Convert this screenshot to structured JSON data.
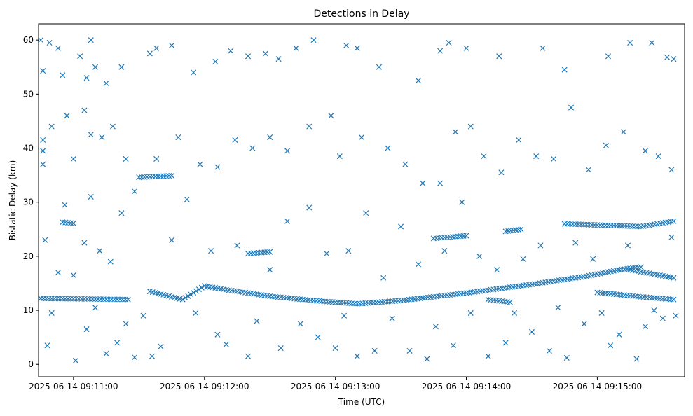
{
  "chart_data": {
    "type": "scatter",
    "title": "Detections in Delay",
    "xlabel": "Time (UTC)",
    "ylabel": "Bistatic Delay (km)",
    "marker": "x",
    "color": "#1f77b4",
    "grid": false,
    "legend": false,
    "x_unit": "UTC time (HH:MM:SS)",
    "xlim": [
      "09:10:44",
      "09:15:40"
    ],
    "ylim": [
      -2.3,
      63
    ],
    "x_ticks": [
      "2025-06-14 09:11:00",
      "2025-06-14 09:12:00",
      "2025-06-14 09:13:00",
      "2025-06-14 09:14:00",
      "2025-06-14 09:15:00"
    ],
    "y_ticks": [
      "0",
      "10",
      "20",
      "30",
      "40",
      "50",
      "60"
    ],
    "tracks": [
      {
        "description": "main falling-then-rising track",
        "points": [
          [
            "09:11:35",
            13.5
          ],
          [
            "09:11:50",
            12.0
          ],
          [
            "09:12:00",
            14.5
          ],
          [
            "09:12:10",
            13.8
          ],
          [
            "09:12:30",
            12.6
          ],
          [
            "09:12:50",
            11.8
          ],
          [
            "09:13:10",
            11.2
          ],
          [
            "09:13:30",
            11.8
          ],
          [
            "09:14:00",
            13.2
          ],
          [
            "09:14:30",
            14.8
          ],
          [
            "09:14:55",
            16.3
          ],
          [
            "09:15:10",
            17.5
          ],
          [
            "09:15:20",
            18.0
          ]
        ]
      },
      {
        "description": "lower continuation track",
        "points": [
          [
            "09:15:00",
            13.3
          ],
          [
            "09:15:20",
            12.5
          ],
          [
            "09:15:35",
            12.0
          ]
        ]
      },
      {
        "description": "upper branch track",
        "points": [
          [
            "09:15:15",
            17.5
          ],
          [
            "09:15:35",
            16.0
          ]
        ]
      },
      {
        "description": "track near 26 km",
        "points": [
          [
            "09:14:45",
            26.0
          ],
          [
            "09:15:20",
            25.5
          ],
          [
            "09:15:35",
            26.5
          ]
        ]
      },
      {
        "description": "segment near 34.5 km",
        "points": [
          [
            "09:11:30",
            34.6
          ],
          [
            "09:11:45",
            34.9
          ]
        ]
      },
      {
        "description": "segment near 23.5 km",
        "points": [
          [
            "09:13:45",
            23.3
          ],
          [
            "09:14:00",
            23.8
          ]
        ]
      },
      {
        "description": "segment near 20.5 km",
        "points": [
          [
            "09:12:20",
            20.5
          ],
          [
            "09:12:30",
            20.8
          ]
        ]
      },
      {
        "description": "segment near 26 km (early)",
        "points": [
          [
            "09:10:55",
            26.3
          ],
          [
            "09:11:00",
            26.1
          ]
        ]
      },
      {
        "description": "segment near 12 km (early)",
        "points": [
          [
            "09:10:45",
            12.2
          ],
          [
            "09:11:25",
            12.0
          ]
        ]
      },
      {
        "description": "segment near 25 km",
        "points": [
          [
            "09:14:18",
            24.6
          ],
          [
            "09:14:25",
            25.0
          ]
        ]
      },
      {
        "description": "segment near 12 km (mid)",
        "points": [
          [
            "09:14:10",
            12.0
          ],
          [
            "09:14:20",
            11.5
          ]
        ]
      }
    ],
    "scattered_points": [
      [
        "09:10:45",
        60.0
      ],
      [
        "09:10:46",
        54.3
      ],
      [
        "09:10:49",
        59.5
      ],
      [
        "09:10:53",
        58.5
      ],
      [
        "09:10:55",
        53.5
      ],
      [
        "09:11:03",
        57.0
      ],
      [
        "09:11:06",
        53.0
      ],
      [
        "09:11:08",
        60.0
      ],
      [
        "09:11:10",
        55.0
      ],
      [
        "09:11:15",
        52.0
      ],
      [
        "09:11:22",
        55.0
      ],
      [
        "09:11:35",
        57.5
      ],
      [
        "09:11:38",
        58.5
      ],
      [
        "09:11:45",
        59.0
      ],
      [
        "09:11:55",
        54.0
      ],
      [
        "09:12:05",
        56.0
      ],
      [
        "09:12:12",
        58.0
      ],
      [
        "09:12:20",
        57.0
      ],
      [
        "09:12:28",
        57.5
      ],
      [
        "09:12:34",
        56.5
      ],
      [
        "09:12:42",
        58.5
      ],
      [
        "09:12:50",
        60.0
      ],
      [
        "09:13:05",
        59.0
      ],
      [
        "09:13:10",
        58.5
      ],
      [
        "09:13:20",
        55.0
      ],
      [
        "09:13:38",
        52.5
      ],
      [
        "09:13:48",
        58.0
      ],
      [
        "09:13:52",
        59.5
      ],
      [
        "09:14:00",
        58.5
      ],
      [
        "09:14:15",
        57.0
      ],
      [
        "09:14:35",
        58.5
      ],
      [
        "09:14:45",
        54.5
      ],
      [
        "09:15:05",
        57.0
      ],
      [
        "09:15:15",
        59.5
      ],
      [
        "09:15:25",
        59.5
      ],
      [
        "09:15:32",
        56.8
      ],
      [
        "09:15:35",
        56.5
      ],
      [
        "09:10:46",
        41.5
      ],
      [
        "09:10:46",
        39.5
      ],
      [
        "09:10:46",
        37.0
      ],
      [
        "09:10:50",
        44.0
      ],
      [
        "09:10:57",
        46.0
      ],
      [
        "09:11:00",
        38.0
      ],
      [
        "09:11:05",
        47.0
      ],
      [
        "09:11:08",
        42.5
      ],
      [
        "09:11:13",
        42.0
      ],
      [
        "09:11:18",
        44.0
      ],
      [
        "09:11:24",
        38.0
      ],
      [
        "09:11:28",
        32.0
      ],
      [
        "09:11:38",
        38.0
      ],
      [
        "09:11:48",
        42.0
      ],
      [
        "09:11:58",
        37.0
      ],
      [
        "09:12:06",
        36.5
      ],
      [
        "09:12:14",
        41.5
      ],
      [
        "09:12:22",
        40.0
      ],
      [
        "09:12:30",
        42.0
      ],
      [
        "09:12:38",
        39.5
      ],
      [
        "09:12:48",
        44.0
      ],
      [
        "09:12:58",
        46.0
      ],
      [
        "09:13:02",
        38.5
      ],
      [
        "09:13:12",
        42.0
      ],
      [
        "09:13:24",
        40.0
      ],
      [
        "09:13:32",
        37.0
      ],
      [
        "09:13:40",
        33.5
      ],
      [
        "09:13:48",
        33.5
      ],
      [
        "09:13:55",
        43.0
      ],
      [
        "09:14:02",
        44.0
      ],
      [
        "09:14:08",
        38.5
      ],
      [
        "09:14:16",
        35.5
      ],
      [
        "09:14:24",
        41.5
      ],
      [
        "09:14:32",
        38.5
      ],
      [
        "09:14:40",
        38.0
      ],
      [
        "09:14:48",
        47.5
      ],
      [
        "09:14:56",
        36.0
      ],
      [
        "09:15:04",
        40.5
      ],
      [
        "09:15:12",
        43.0
      ],
      [
        "09:15:22",
        39.5
      ],
      [
        "09:15:28",
        38.5
      ],
      [
        "09:15:34",
        36.0
      ],
      [
        "09:10:47",
        23.0
      ],
      [
        "09:10:48",
        3.5
      ],
      [
        "09:10:50",
        9.5
      ],
      [
        "09:10:53",
        17.0
      ],
      [
        "09:10:56",
        29.5
      ],
      [
        "09:11:00",
        16.5
      ],
      [
        "09:11:01",
        0.7
      ],
      [
        "09:11:05",
        22.5
      ],
      [
        "09:11:06",
        6.5
      ],
      [
        "09:11:08",
        31.0
      ],
      [
        "09:11:10",
        10.5
      ],
      [
        "09:11:12",
        21.0
      ],
      [
        "09:11:15",
        2.0
      ],
      [
        "09:11:17",
        19.0
      ],
      [
        "09:11:20",
        4.0
      ],
      [
        "09:11:22",
        28.0
      ],
      [
        "09:11:24",
        7.5
      ],
      [
        "09:11:28",
        1.3
      ],
      [
        "09:11:32",
        9.0
      ],
      [
        "09:11:36",
        1.5
      ],
      [
        "09:11:40",
        3.3
      ],
      [
        "09:11:45",
        23.0
      ],
      [
        "09:11:52",
        30.5
      ],
      [
        "09:11:56",
        9.5
      ],
      [
        "09:12:03",
        21.0
      ],
      [
        "09:12:06",
        5.5
      ],
      [
        "09:12:10",
        3.7
      ],
      [
        "09:12:15",
        22.0
      ],
      [
        "09:12:20",
        1.5
      ],
      [
        "09:12:24",
        8.0
      ],
      [
        "09:12:30",
        17.5
      ],
      [
        "09:12:35",
        3.0
      ],
      [
        "09:12:38",
        26.5
      ],
      [
        "09:12:44",
        7.5
      ],
      [
        "09:12:48",
        29.0
      ],
      [
        "09:12:52",
        5.0
      ],
      [
        "09:12:56",
        20.5
      ],
      [
        "09:13:00",
        3.0
      ],
      [
        "09:13:04",
        9.0
      ],
      [
        "09:13:06",
        21.0
      ],
      [
        "09:13:10",
        1.5
      ],
      [
        "09:13:14",
        28.0
      ],
      [
        "09:13:18",
        2.5
      ],
      [
        "09:13:22",
        16.0
      ],
      [
        "09:13:26",
        8.5
      ],
      [
        "09:13:30",
        25.5
      ],
      [
        "09:13:34",
        2.5
      ],
      [
        "09:13:38",
        18.5
      ],
      [
        "09:13:42",
        1.0
      ],
      [
        "09:13:46",
        7.0
      ],
      [
        "09:13:50",
        21.0
      ],
      [
        "09:13:54",
        3.5
      ],
      [
        "09:13:58",
        30.0
      ],
      [
        "09:14:02",
        9.5
      ],
      [
        "09:14:06",
        20.0
      ],
      [
        "09:14:10",
        1.5
      ],
      [
        "09:14:14",
        17.5
      ],
      [
        "09:14:18",
        4.0
      ],
      [
        "09:14:22",
        9.5
      ],
      [
        "09:14:26",
        19.5
      ],
      [
        "09:14:30",
        6.0
      ],
      [
        "09:14:34",
        22.0
      ],
      [
        "09:14:38",
        2.5
      ],
      [
        "09:14:42",
        10.5
      ],
      [
        "09:14:46",
        1.2
      ],
      [
        "09:14:50",
        22.5
      ],
      [
        "09:14:54",
        7.5
      ],
      [
        "09:14:58",
        19.5
      ],
      [
        "09:15:02",
        9.5
      ],
      [
        "09:15:06",
        3.5
      ],
      [
        "09:15:10",
        5.5
      ],
      [
        "09:15:14",
        22.0
      ],
      [
        "09:15:18",
        1.0
      ],
      [
        "09:15:22",
        7.0
      ],
      [
        "09:15:26",
        10.0
      ],
      [
        "09:15:30",
        8.5
      ],
      [
        "09:15:34",
        23.5
      ],
      [
        "09:15:36",
        9.0
      ]
    ]
  }
}
